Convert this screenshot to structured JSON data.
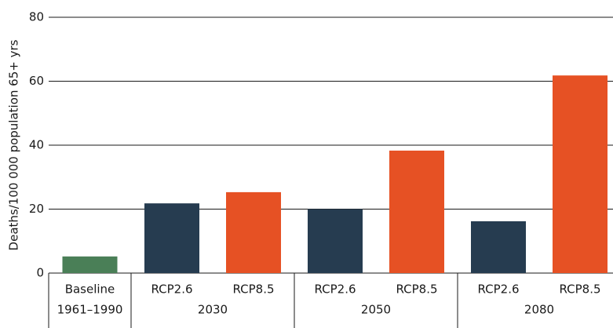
{
  "chart_data": {
    "type": "bar",
    "y_label": "Deaths/100 000 population 65+ yrs",
    "ylim": [
      0,
      80
    ],
    "yticks": [
      0,
      20,
      40,
      60,
      80
    ],
    "grid": true,
    "groups": [
      {
        "name": "1961–1990",
        "categories": [
          "Baseline"
        ],
        "values": [
          5.2
        ],
        "colors": [
          "#4a7f57"
        ]
      },
      {
        "name": "2030",
        "categories": [
          "RCP2.6",
          "RCP8.5"
        ],
        "values": [
          21.8,
          25.3
        ],
        "colors": [
          "#263c50",
          "#e65124"
        ]
      },
      {
        "name": "2050",
        "categories": [
          "RCP2.6",
          "RCP8.5"
        ],
        "values": [
          20,
          38.3
        ],
        "colors": [
          "#263c50",
          "#e65124"
        ]
      },
      {
        "name": "2080",
        "categories": [
          "RCP2.6",
          "RCP8.5"
        ],
        "values": [
          16.2,
          61.8
        ],
        "colors": [
          "#263c50",
          "#e65124"
        ]
      }
    ]
  }
}
